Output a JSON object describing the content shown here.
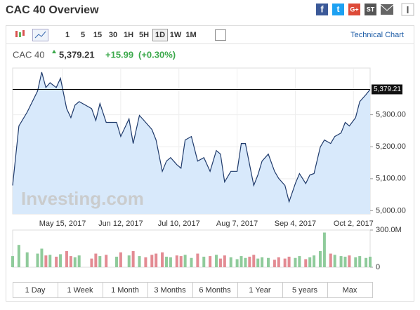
{
  "header": {
    "title": "CAC 40 Overview",
    "share": [
      "f",
      "t",
      "G+",
      "ST"
    ]
  },
  "toolbar": {
    "intervals": [
      "1",
      "5",
      "15",
      "30",
      "1H",
      "5H",
      "1D",
      "1W",
      "1M"
    ],
    "active": "1D",
    "link": "Technical Chart"
  },
  "quote": {
    "name": "CAC 40",
    "price": "5,379.21",
    "change": "+15.99",
    "change_percent": "(+0.30%)"
  },
  "watermark": "Investing.com",
  "ranges": [
    "1 Day",
    "1 Week",
    "1 Month",
    "3 Months",
    "6 Months",
    "1 Year",
    "5 years",
    "Max"
  ],
  "chart_data": [
    {
      "type": "area",
      "color": "#1f3a6b",
      "fill": "#d8e9fb",
      "x": [
        "2017-04-21",
        "2017-04-24",
        "2017-04-28",
        "2017-05-03",
        "2017-05-05",
        "2017-05-07",
        "2017-05-09",
        "2017-05-12",
        "2017-05-14",
        "2017-05-17",
        "2017-05-19",
        "2017-05-21",
        "2017-05-23",
        "2017-05-29",
        "2017-05-31",
        "2017-06-02",
        "2017-06-05",
        "2017-06-10",
        "2017-06-12",
        "2017-06-16",
        "2017-06-18",
        "2017-06-21",
        "2017-06-24",
        "2017-06-27",
        "2017-06-29",
        "2017-07-02",
        "2017-07-04",
        "2017-07-06",
        "2017-07-09",
        "2017-07-11",
        "2017-07-13",
        "2017-07-16",
        "2017-07-19",
        "2017-07-22",
        "2017-07-25",
        "2017-07-28",
        "2017-07-30",
        "2017-08-01",
        "2017-08-04",
        "2017-08-07",
        "2017-08-09",
        "2017-08-11",
        "2017-08-13",
        "2017-08-15",
        "2017-08-17",
        "2017-08-19",
        "2017-08-22",
        "2017-08-25",
        "2017-08-27",
        "2017-08-30",
        "2017-09-01",
        "2017-09-04",
        "2017-09-06",
        "2017-09-09",
        "2017-09-11",
        "2017-09-13",
        "2017-09-16",
        "2017-09-18",
        "2017-09-21",
        "2017-09-23",
        "2017-09-26",
        "2017-09-28",
        "2017-09-30",
        "2017-10-03",
        "2017-10-05",
        "2017-10-08",
        "2017-10-10"
      ],
      "values": [
        5079,
        5265,
        5308,
        5374,
        5433,
        5385,
        5400,
        5385,
        5414,
        5319,
        5291,
        5330,
        5341,
        5319,
        5282,
        5335,
        5276,
        5276,
        5232,
        5287,
        5210,
        5298,
        5276,
        5254,
        5221,
        5123,
        5155,
        5166,
        5144,
        5133,
        5221,
        5232,
        5155,
        5166,
        5123,
        5188,
        5177,
        5090,
        5123,
        5123,
        5210,
        5210,
        5144,
        5079,
        5112,
        5155,
        5177,
        5123,
        5101,
        5079,
        5028,
        5085,
        5116,
        5085,
        5112,
        5116,
        5199,
        5221,
        5210,
        5232,
        5243,
        5276,
        5265,
        5291,
        5341,
        5363,
        5379.21
      ],
      "xlim": [
        "2017-04-21",
        "2017-10-10"
      ],
      "xticks": [
        {
          "value": "2017-05-15",
          "label": "May 15, 2017"
        },
        {
          "value": "2017-06-12",
          "label": "Jun 12, 2017"
        },
        {
          "value": "2017-07-10",
          "label": "Jul 10, 2017"
        },
        {
          "value": "2017-08-07",
          "label": "Aug 7, 2017"
        },
        {
          "value": "2017-09-04",
          "label": "Sep 4, 2017"
        },
        {
          "value": "2017-10-02",
          "label": "Oct 2, 2017"
        }
      ],
      "ylim": [
        4990,
        5446
      ],
      "yticks": [
        {
          "value": 5000,
          "label": "5,000.00"
        },
        {
          "value": 5100,
          "label": "5,100.00"
        },
        {
          "value": 5200,
          "label": "5,200.00"
        },
        {
          "value": 5300,
          "label": "5,300.00"
        }
      ],
      "grid": true
    },
    {
      "type": "bar",
      "up_color": "#8fcb9b",
      "down_color": "#e38b93",
      "values": [
        90000000,
        180000000,
        120000000,
        110000000,
        150000000,
        95000000,
        100000000,
        85000000,
        105000000,
        130000000,
        90000000,
        80000000,
        95000000,
        70000000,
        110000000,
        90000000,
        100000000,
        85000000,
        120000000,
        95000000,
        130000000,
        90000000,
        80000000,
        100000000,
        110000000,
        120000000,
        85000000,
        80000000,
        95000000,
        90000000,
        100000000,
        75000000,
        110000000,
        85000000,
        90000000,
        100000000,
        70000000,
        95000000,
        80000000,
        65000000,
        90000000,
        75000000,
        85000000,
        100000000,
        70000000,
        80000000,
        75000000,
        60000000,
        80000000,
        70000000,
        85000000,
        75000000,
        90000000,
        65000000,
        80000000,
        95000000,
        130000000,
        280000000,
        110000000,
        100000000,
        90000000,
        85000000,
        95000000,
        80000000,
        90000000,
        75000000,
        85000000
      ],
      "ylim": [
        0,
        300000000
      ],
      "yticks": [
        0,
        {
          "value": 300000000,
          "label": "300.0M"
        }
      ]
    }
  ]
}
